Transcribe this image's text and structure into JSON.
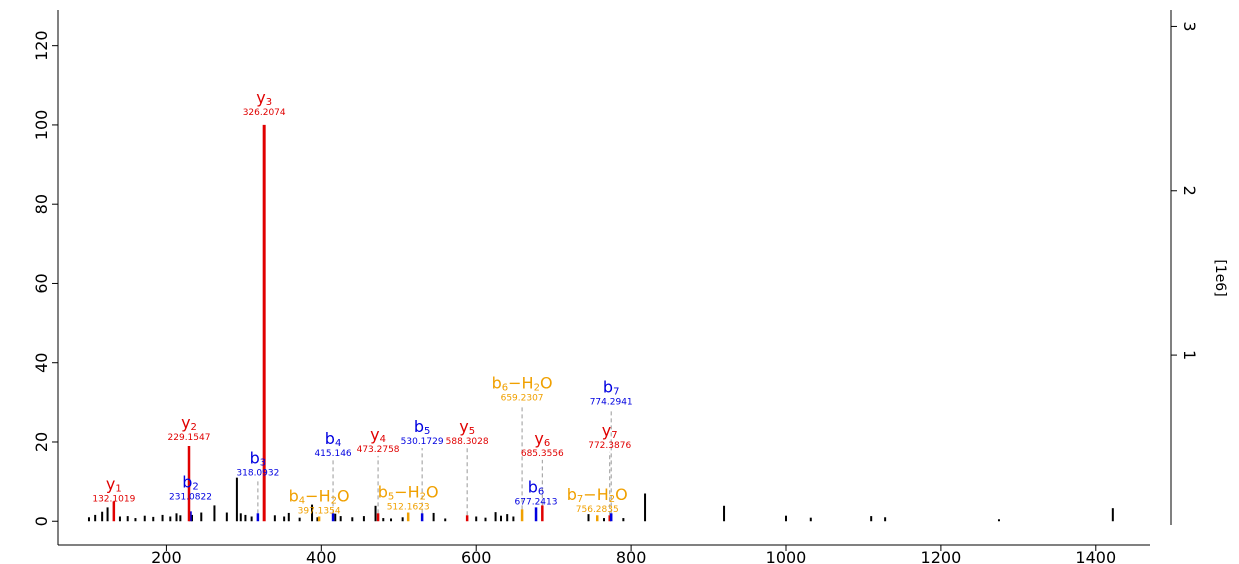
{
  "chart_data": {
    "type": "bar",
    "title": "",
    "xlabel": "",
    "ylabel": "",
    "xlim": [
      60,
      1470
    ],
    "ylim": [
      -1.2,
      129
    ],
    "right_ylim": [
      -0.04,
      3.1
    ],
    "x_ticks": [
      200,
      400,
      600,
      800,
      1000,
      1200,
      1400
    ],
    "y_ticks": [
      0,
      20,
      40,
      60,
      80,
      100,
      120
    ],
    "right_ticks": [
      1,
      2,
      3
    ],
    "right_unit": "[1e6]",
    "grid": false,
    "colors": {
      "y": "#e00000",
      "b": "#0000e0",
      "b-H2O": "#f0a000",
      "unmatched": "#000000"
    },
    "unmatched_peaks": [
      {
        "x": 100,
        "y": 1.0
      },
      {
        "x": 108,
        "y": 1.6
      },
      {
        "x": 117,
        "y": 2.4
      },
      {
        "x": 124,
        "y": 3.5
      },
      {
        "x": 140,
        "y": 1.2
      },
      {
        "x": 150,
        "y": 1.3
      },
      {
        "x": 160,
        "y": 0.8
      },
      {
        "x": 172,
        "y": 1.4
      },
      {
        "x": 183,
        "y": 1.1
      },
      {
        "x": 195,
        "y": 1.6
      },
      {
        "x": 205,
        "y": 1.2
      },
      {
        "x": 213,
        "y": 2.0
      },
      {
        "x": 218,
        "y": 1.5
      },
      {
        "x": 233,
        "y": 1.6
      },
      {
        "x": 245,
        "y": 2.2
      },
      {
        "x": 262,
        "y": 4.0
      },
      {
        "x": 278,
        "y": 2.2
      },
      {
        "x": 291,
        "y": 11.0
      },
      {
        "x": 296,
        "y": 2.0
      },
      {
        "x": 302,
        "y": 1.6
      },
      {
        "x": 310,
        "y": 1.2
      },
      {
        "x": 340,
        "y": 1.5
      },
      {
        "x": 352,
        "y": 1.2
      },
      {
        "x": 358,
        "y": 2.1
      },
      {
        "x": 372,
        "y": 0.9
      },
      {
        "x": 388,
        "y": 4.2
      },
      {
        "x": 395,
        "y": 1.0
      },
      {
        "x": 418,
        "y": 1.9
      },
      {
        "x": 425,
        "y": 1.3
      },
      {
        "x": 440,
        "y": 1.0
      },
      {
        "x": 455,
        "y": 1.3
      },
      {
        "x": 470,
        "y": 3.9
      },
      {
        "x": 480,
        "y": 0.8
      },
      {
        "x": 490,
        "y": 0.7
      },
      {
        "x": 505,
        "y": 1.0
      },
      {
        "x": 545,
        "y": 2.1
      },
      {
        "x": 560,
        "y": 0.7
      },
      {
        "x": 600,
        "y": 1.2
      },
      {
        "x": 612,
        "y": 0.9
      },
      {
        "x": 625,
        "y": 2.3
      },
      {
        "x": 632,
        "y": 1.4
      },
      {
        "x": 640,
        "y": 1.8
      },
      {
        "x": 648,
        "y": 1.2
      },
      {
        "x": 745,
        "y": 1.8
      },
      {
        "x": 765,
        "y": 0.8
      },
      {
        "x": 790,
        "y": 0.8
      },
      {
        "x": 818,
        "y": 7.0
      },
      {
        "x": 920,
        "y": 3.9
      },
      {
        "x": 1000,
        "y": 1.4
      },
      {
        "x": 1032,
        "y": 0.9
      },
      {
        "x": 1110,
        "y": 1.3
      },
      {
        "x": 1128,
        "y": 1.0
      },
      {
        "x": 1275,
        "y": 0.5
      },
      {
        "x": 1422,
        "y": 3.3
      }
    ],
    "annotated_peaks": [
      {
        "ion": "y",
        "sub": "1",
        "label": "y1",
        "mz_label": "132.1019",
        "x": 132.1,
        "y": 5.0,
        "label_y": 4.5,
        "connector": false
      },
      {
        "ion": "b",
        "sub": "2",
        "label": "b2",
        "mz_label": "231.0822",
        "x": 231.08,
        "y": 2.5,
        "label_y": 5.0,
        "connector": false
      },
      {
        "ion": "y",
        "sub": "2",
        "label": "y2",
        "mz_label": "229.1547",
        "x": 229.15,
        "y": 19.0,
        "label_y": 20.0,
        "connector": false
      },
      {
        "ion": "b",
        "sub": "3",
        "label": "b3",
        "mz_label": "318.0932",
        "x": 318.09,
        "y": 2.0,
        "label_y": 11.0,
        "connector": true
      },
      {
        "ion": "y",
        "sub": "3",
        "label": "y3",
        "mz_label": "326.2074",
        "x": 326.21,
        "y": 100.0,
        "label_y": 102.0,
        "connector": false
      },
      {
        "ion": "b-H2O",
        "sub": "4",
        "label": "b4−H2O",
        "mz_label": "397.1354",
        "x": 397.14,
        "y": 1.2,
        "label_y": 1.5,
        "connector": false
      },
      {
        "ion": "b",
        "sub": "4",
        "label": "b4",
        "mz_label": "415.146",
        "x": 415.15,
        "y": 2.0,
        "label_y": 16.0,
        "connector": true
      },
      {
        "ion": "y",
        "sub": "4",
        "label": "y4",
        "mz_label": "473.2758",
        "x": 473.28,
        "y": 2.0,
        "label_y": 17.0,
        "connector": true
      },
      {
        "ion": "b-H2O",
        "sub": "5",
        "label": "b5−H2O",
        "mz_label": "512.1623",
        "x": 512.16,
        "y": 2.2,
        "label_y": 2.5,
        "connector": false
      },
      {
        "ion": "b",
        "sub": "5",
        "label": "b5",
        "mz_label": "530.1729",
        "x": 530.17,
        "y": 2.0,
        "label_y": 19.0,
        "connector": true
      },
      {
        "ion": "y",
        "sub": "5",
        "label": "y5",
        "mz_label": "588.3028",
        "x": 588.3,
        "y": 1.5,
        "label_y": 19.0,
        "connector": true
      },
      {
        "ion": "b-H2O",
        "sub": "6",
        "label": "b6−H2O",
        "mz_label": "659.2307",
        "x": 659.23,
        "y": 3.0,
        "label_y": 30.0,
        "connector": true
      },
      {
        "ion": "b",
        "sub": "6",
        "label": "b6",
        "mz_label": "677.2413",
        "x": 677.24,
        "y": 3.5,
        "label_y": 3.7,
        "connector": false
      },
      {
        "ion": "y",
        "sub": "6",
        "label": "y6",
        "mz_label": "685.3556",
        "x": 685.36,
        "y": 4.0,
        "label_y": 16.0,
        "connector": true
      },
      {
        "ion": "b-H2O",
        "sub": "7",
        "label": "b7−H2O",
        "mz_label": "756.2835",
        "x": 756.28,
        "y": 1.5,
        "label_y": 1.8,
        "connector": false
      },
      {
        "ion": "y",
        "sub": "7",
        "label": "y7",
        "mz_label": "772.3876",
        "x": 772.39,
        "y": 1.5,
        "label_y": 18.0,
        "connector": true
      },
      {
        "ion": "b",
        "sub": "7",
        "label": "b7",
        "mz_label": "774.2941",
        "x": 774.29,
        "y": 2.0,
        "label_y": 29.0,
        "connector": true
      }
    ]
  }
}
